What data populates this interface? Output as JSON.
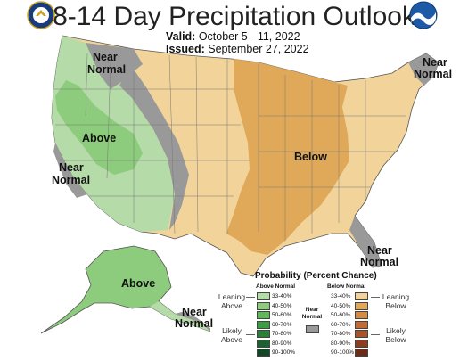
{
  "title": "8-14 Day Precipitation Outlook",
  "valid_label": "Valid:",
  "valid_value": "October 5 - 11, 2022",
  "issued_label": "Issued:",
  "issued_value": "September 27, 2022",
  "logos": {
    "left": "doc-seal-icon",
    "right": "noaa-logo-icon"
  },
  "map_labels": {
    "near_normal_nw": "Near",
    "near_normal_nw2": "Normal",
    "near_normal_ne": "Near",
    "near_normal_ne2": "Normal",
    "above_west": "Above",
    "near_normal_ca": "Near",
    "near_normal_ca2": "Normal",
    "below_central": "Below",
    "near_normal_fl": "Near",
    "near_normal_fl2": "Normal",
    "above_alaska": "Above",
    "near_normal_ak": "Near",
    "near_normal_ak2": "Normal"
  },
  "legend": {
    "title": "Probability (Percent Chance)",
    "above_header": "Above Normal",
    "below_header": "Below Normal",
    "near_header_1": "Near",
    "near_header_2": "Normal",
    "leaning_above_1": "Leaning",
    "leaning_above_2": "Above",
    "likely_above_1": "Likely",
    "likely_above_2": "Above",
    "leaning_below_1": "Leaning",
    "leaning_below_2": "Below",
    "likely_below_1": "Likely",
    "likely_below_2": "Below",
    "ranges": [
      "33-40%",
      "40-50%",
      "50-60%",
      "60-70%",
      "70-80%",
      "80-90%",
      "90-100%"
    ],
    "above_colors": [
      "#b5dba8",
      "#8ccc7c",
      "#5cb956",
      "#3a9e45",
      "#2a7f3a",
      "#1e6131",
      "#124724"
    ],
    "below_colors": [
      "#f2d49b",
      "#e0a859",
      "#d58a45",
      "#c26c35",
      "#a85328",
      "#8a3d1f",
      "#6b2b17"
    ],
    "near_color": "#999999"
  }
}
